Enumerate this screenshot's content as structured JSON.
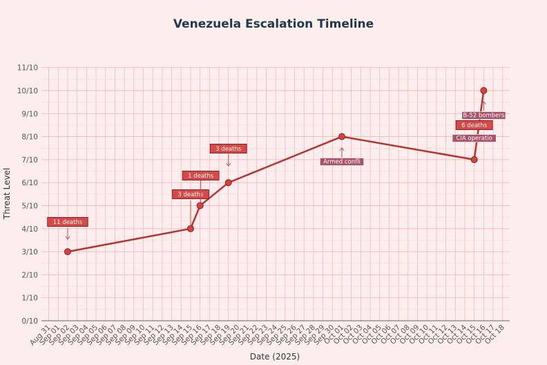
{
  "chart_data": {
    "type": "line",
    "title": "Venezuela Escalation Timeline",
    "xlabel": "Date (2025)",
    "ylabel": "Threat Level",
    "x_tick_labels": [
      "Aug 31",
      "Sep 01",
      "Sep 02",
      "Sep 03",
      "Sep 04",
      "Sep 05",
      "Sep 06",
      "Sep 07",
      "Sep 08",
      "Sep 09",
      "Sep 10",
      "Sep 11",
      "Sep 12",
      "Sep 13",
      "Sep 14",
      "Sep 15",
      "Sep 16",
      "Sep 17",
      "Sep 18",
      "Sep 19",
      "Sep 20",
      "Sep 21",
      "Sep 22",
      "Sep 23",
      "Sep 24",
      "Sep 25",
      "Sep 26",
      "Sep 27",
      "Sep 28",
      "Sep 29",
      "Sep 30",
      "Oct 01",
      "Oct 02",
      "Oct 03",
      "Oct 04",
      "Oct 05",
      "Oct 06",
      "Oct 07",
      "Oct 08",
      "Oct 09",
      "Oct 10",
      "Oct 11",
      "Oct 12",
      "Oct 13",
      "Oct 14",
      "Oct 15",
      "Oct 16",
      "Oct 17",
      "Oct 18"
    ],
    "y_tick_labels": [
      "0/10",
      "1/10",
      "2/10",
      "3/10",
      "4/10",
      "5/10",
      "6/10",
      "7/10",
      "8/10",
      "9/10",
      "10/10",
      "11/10"
    ],
    "ylim": [
      0,
      11
    ],
    "xlim": [
      "2025-08-31",
      "2025-10-18"
    ],
    "grid": true,
    "series": [
      {
        "x": [
          "2025-09-02",
          "2025-09-15",
          "2025-09-16",
          "2025-09-19",
          "2025-10-01",
          "2025-10-15",
          "2025-10-16"
        ],
        "y": [
          3,
          4,
          5,
          6,
          8,
          7,
          10
        ]
      }
    ],
    "annotations": [
      {
        "text": "11 deaths",
        "x": "2025-09-02",
        "y": 3,
        "kind": "deaths"
      },
      {
        "text": "3 deaths",
        "x": "2025-09-15",
        "y": 4,
        "kind": "deaths"
      },
      {
        "text": "1 deaths",
        "x": "2025-09-16",
        "y": 5,
        "kind": "deaths"
      },
      {
        "text": "3 deaths",
        "x": "2025-09-19",
        "y": 6,
        "kind": "deaths"
      },
      {
        "text": "Armed confli",
        "x": "2025-10-01",
        "y": 8,
        "kind": "event"
      },
      {
        "text": "CIA operatio",
        "x": "2025-10-15",
        "y": 7,
        "kind": "event"
      },
      {
        "text": "6 deaths",
        "x": "2025-10-15",
        "y": 7,
        "kind": "deaths"
      },
      {
        "text": "B-52 bombers",
        "x": "2025-10-16",
        "y": 10,
        "kind": "event"
      }
    ],
    "colors": {
      "line": "#b83232",
      "marker": "#d94040",
      "deaths_box": "#d94747",
      "event_box": "#a8526a",
      "grid": "#f2b8b8",
      "background": "#fdeeee"
    }
  }
}
